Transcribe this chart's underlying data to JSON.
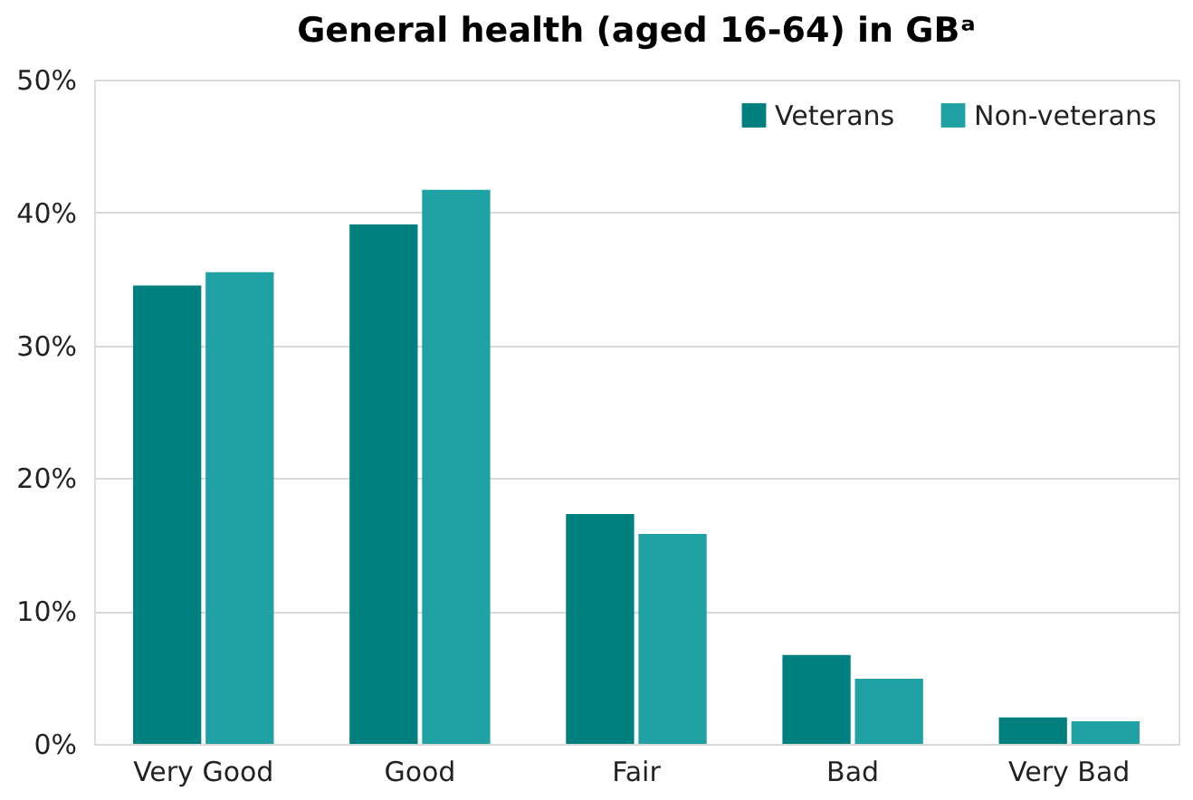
{
  "chart_data": {
    "type": "bar",
    "title": "General health (aged 16-64) in GBᵃ",
    "categories": [
      "Very Good",
      "Good",
      "Fair",
      "Bad",
      "Very Bad"
    ],
    "series": [
      {
        "name": "Veterans",
        "color": "#007f7f",
        "values": [
          34.5,
          39.1,
          17.3,
          6.7,
          2.0
        ]
      },
      {
        "name": "Non-veterans",
        "color": "#20a2a5",
        "values": [
          35.5,
          41.7,
          15.8,
          4.9,
          1.7
        ]
      }
    ],
    "ylim": [
      0,
      50
    ],
    "yticks": [
      {
        "value": 0,
        "label": "0%"
      },
      {
        "value": 10,
        "label": "10%"
      },
      {
        "value": 20,
        "label": "20%"
      },
      {
        "value": 30,
        "label": "30%"
      },
      {
        "value": 40,
        "label": "40%"
      },
      {
        "value": 50,
        "label": "50%"
      }
    ],
    "grid": "y",
    "legend": "top right"
  }
}
